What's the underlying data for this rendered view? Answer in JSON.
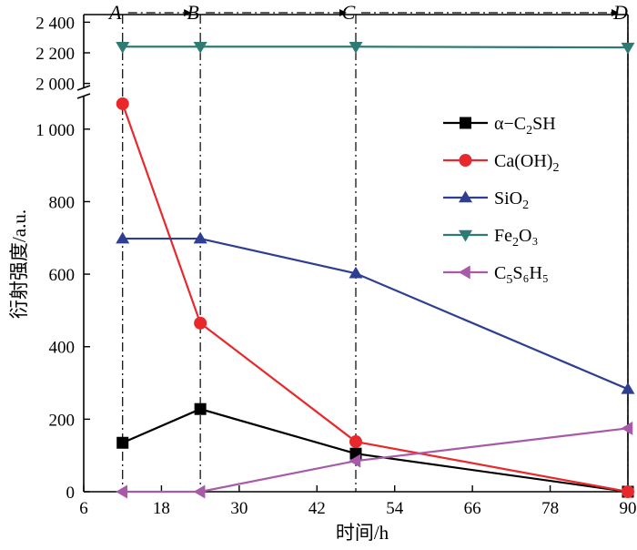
{
  "chart_data": {
    "type": "line",
    "xlabel": "时间/h",
    "ylabel": "衍射强度/a.u.",
    "xlim": [
      6,
      90
    ],
    "x_ticks": [
      "6",
      "18",
      "30",
      "42",
      "54",
      "66",
      "78",
      "90"
    ],
    "y_axis_broken": true,
    "y_lower_range": [
      0,
      1100
    ],
    "y_upper_range": [
      1950,
      2450
    ],
    "y_lower_ticks": [
      "0",
      "200",
      "400",
      "600",
      "800",
      "1 000"
    ],
    "y_upper_ticks": [
      "2 000",
      "2 200",
      "2 400"
    ],
    "x": [
      12,
      24,
      48,
      90
    ],
    "stage_labels": [
      "A",
      "B",
      "C",
      "D"
    ],
    "legend_position": "right",
    "series": [
      {
        "name": "α−C2SH",
        "name_main": "α−C",
        "name_sub": "2",
        "name_rest": "SH",
        "color": "#000000",
        "marker": "square",
        "values": [
          135,
          228,
          105,
          0
        ]
      },
      {
        "name": "Ca(OH)2",
        "name_main": "Ca(OH)",
        "name_sub": "2",
        "name_rest": "",
        "color": "#e8282b",
        "marker": "circle",
        "values": [
          1070,
          465,
          138,
          0
        ]
      },
      {
        "name": "SiO2",
        "name_main": "SiO",
        "name_sub": "2",
        "name_rest": "",
        "color": "#2e3f92",
        "marker": "triangle-up",
        "values": [
          698,
          698,
          602,
          283
        ]
      },
      {
        "name": "Fe2O3",
        "name_main": "Fe",
        "name_sub": "2",
        "name_rest": "O₃",
        "color": "#2e7b73",
        "marker": "triangle-down",
        "values": [
          2240,
          2240,
          2240,
          2235
        ]
      },
      {
        "name": "C5S6H5",
        "name_main": "C",
        "name_sub": "5",
        "name_rest": "S₆H₅",
        "color": "#a85aa8",
        "marker": "triangle-left",
        "values": [
          0,
          0,
          85,
          175
        ]
      }
    ]
  }
}
